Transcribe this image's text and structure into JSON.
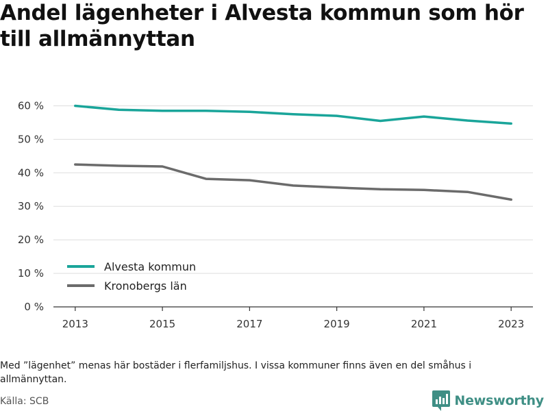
{
  "title": "Andel lägenheter i Alvesta kommun som hör till allmännyttan",
  "footnote": "Med ”lägenhet” menas här bostäder i flerfamiljshus. I vissa kommuner finns även en del småhus i allmännyttan.",
  "source": "Källa: SCB",
  "brand": "Newsworthy",
  "colors": {
    "alvesta": "#1aa59a",
    "kronoberg": "#6b6b6b",
    "grid": "#dddddd",
    "brand": "#3f8f85"
  },
  "chart_data": {
    "type": "line",
    "title": "Andel lägenheter i Alvesta kommun som hör till allmännyttan",
    "xlabel": "",
    "ylabel": "",
    "x": [
      2013,
      2014,
      2015,
      2016,
      2017,
      2018,
      2019,
      2020,
      2021,
      2022,
      2023
    ],
    "xticks": [
      2013,
      2015,
      2017,
      2019,
      2021,
      2023
    ],
    "yticks": [
      0,
      10,
      20,
      30,
      40,
      50,
      60
    ],
    "ytick_labels": [
      "0 %",
      "10 %",
      "20 %",
      "30 %",
      "40 %",
      "50 %",
      "60 %"
    ],
    "ylim": [
      0,
      65
    ],
    "grid": true,
    "legend_position": "bottom-left",
    "series": [
      {
        "name": "Alvesta kommun",
        "color": "#1aa59a",
        "values": [
          60.0,
          58.8,
          58.5,
          58.5,
          58.2,
          57.5,
          57.0,
          55.5,
          56.8,
          55.6,
          54.7
        ]
      },
      {
        "name": "Kronobergs län",
        "color": "#6b6b6b",
        "values": [
          42.5,
          42.1,
          41.9,
          38.2,
          37.8,
          36.2,
          35.6,
          35.1,
          34.9,
          34.3,
          32.0
        ]
      }
    ]
  }
}
